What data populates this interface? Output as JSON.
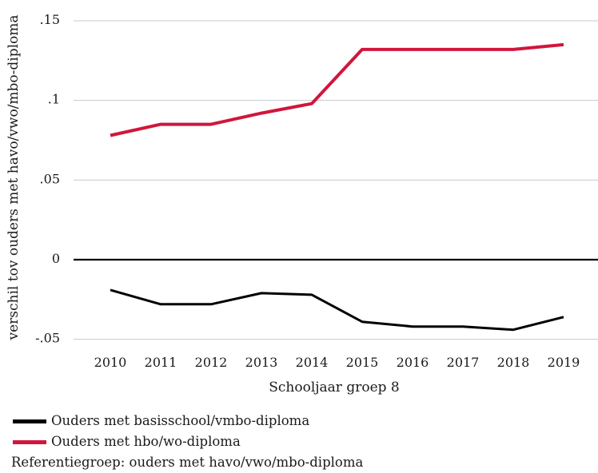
{
  "chart_data": {
    "type": "line",
    "title": "",
    "xlabel": "Schooljaar groep 8",
    "ylabel": "verschil tov ouders met havo/vwo/mbo-diploma",
    "categories": [
      "2010",
      "2011",
      "2012",
      "2013",
      "2014",
      "2015",
      "2016",
      "2017",
      "2018",
      "2019"
    ],
    "ylim": [
      -0.055,
      0.16
    ],
    "yticks": [
      -0.05,
      0,
      0.05,
      0.1,
      0.15
    ],
    "ytick_labels": [
      "-.05",
      "0",
      ".05",
      ".1",
      ".15"
    ],
    "grid": "horizontal",
    "series": [
      {
        "name": "Ouders met basisschool/vmbo-diploma",
        "color": "#000000",
        "values": [
          -0.019,
          -0.028,
          -0.028,
          -0.021,
          -0.022,
          -0.039,
          -0.042,
          -0.042,
          -0.044,
          -0.036
        ]
      },
      {
        "name": "Ouders met hbo/wo-diploma",
        "color": "#d1163c",
        "values": [
          0.078,
          0.085,
          0.085,
          0.092,
          0.098,
          0.132,
          0.132,
          0.132,
          0.132,
          0.135
        ]
      }
    ],
    "legend_position": "bottom-left",
    "footnote": "Referentiegroep: ouders met havo/vwo/mbo-diploma"
  }
}
